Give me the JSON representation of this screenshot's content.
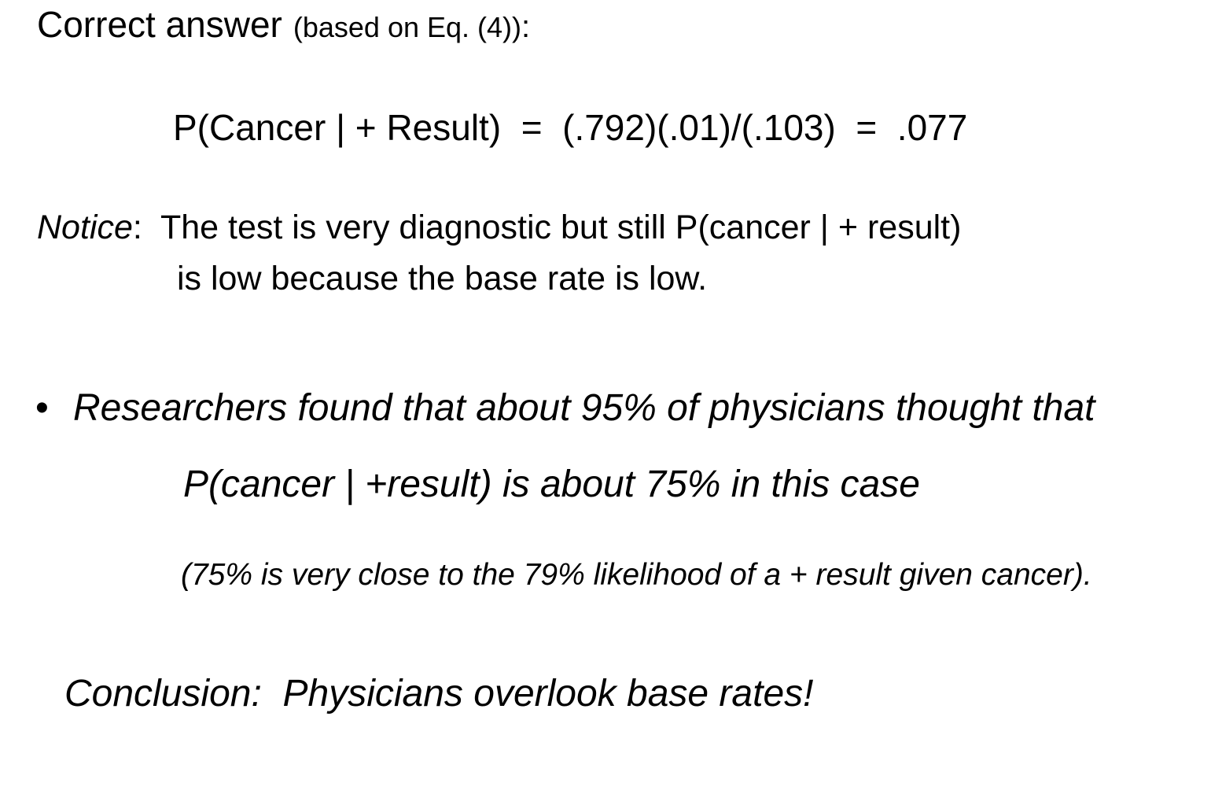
{
  "heading": {
    "main": "Correct answer",
    "sub": "(based on Eq. (4))",
    "colon": ":"
  },
  "equation": "P(Cancer | + Result)  =  (.792)(.01)/(.103)  =  .077",
  "notice": {
    "label": "Notice",
    "line1": ":  The test is very diagnostic but still P(cancer | + result)",
    "line2": "is low because the base rate is low."
  },
  "bullet": {
    "marker": "•",
    "line1": "Researchers found that about 95% of physicians thought that",
    "line2": "P(cancer | +result) is about 75% in this case",
    "parenthetical": "(75% is very close to the 79% likelihood of a + result given cancer)."
  },
  "conclusion": "Conclusion:  Physicians overlook base rates!"
}
